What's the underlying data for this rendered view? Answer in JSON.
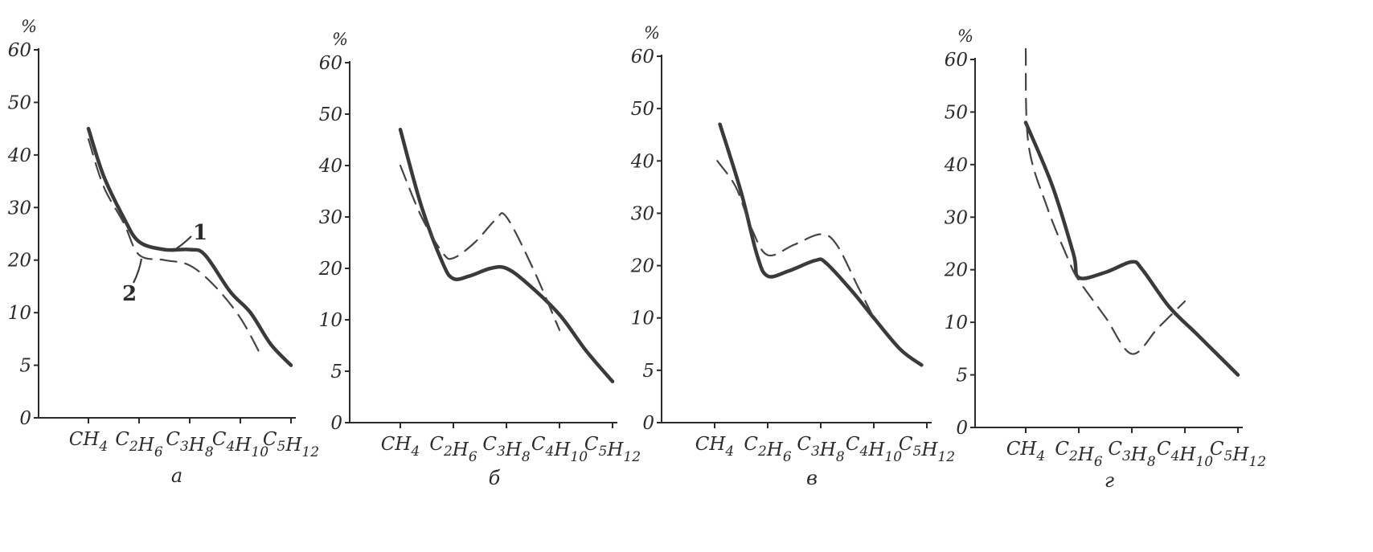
{
  "chart_data": [
    {
      "type": "line",
      "panel_label": "а",
      "unit": "%",
      "ylim": [
        0,
        60
      ],
      "yticks": [
        "0",
        "5",
        "10",
        "20",
        "30",
        "40",
        "50",
        "60"
      ],
      "categories": [
        "CH4",
        "C2H6",
        "C3H8",
        "C4H10",
        "C5H12"
      ],
      "categories_sub": [
        [
          [
            "C",
            "H",
            "4"
          ]
        ],
        [
          [
            "C",
            "2"
          ],
          [
            "H",
            "6"
          ]
        ],
        [
          [
            "C",
            "3"
          ],
          [
            "H",
            "8"
          ]
        ],
        [
          [
            "C",
            "4"
          ],
          [
            "H",
            "10"
          ]
        ],
        [
          [
            "C",
            "5"
          ],
          [
            "H",
            "12"
          ]
        ]
      ],
      "curve_labels": [
        "1",
        "2"
      ],
      "series": [
        {
          "style": "solid",
          "x": [
            0,
            0.3,
            0.7,
            1.0,
            1.5,
            2.0,
            2.3,
            2.8,
            3.2,
            3.6,
            4.0
          ],
          "y": [
            45,
            36,
            28,
            23.5,
            22,
            22,
            21,
            14,
            10,
            7,
            5
          ]
        },
        {
          "style": "dashed",
          "x": [
            0,
            0.3,
            0.7,
            1.0,
            1.5,
            2.0,
            2.5,
            3.0,
            3.4
          ],
          "y": [
            43,
            34,
            27,
            21,
            20,
            19,
            15,
            9.5,
            6
          ]
        }
      ]
    },
    {
      "type": "line",
      "panel_label": "б",
      "unit": "%",
      "ylim": [
        0,
        60
      ],
      "yticks": [
        "0",
        "5",
        "10",
        "20",
        "30",
        "40",
        "50",
        "60"
      ],
      "categories": [
        "CH4",
        "C2H6",
        "C3H8",
        "C4H10",
        "C5H12"
      ],
      "series": [
        {
          "style": "solid",
          "x": [
            0,
            0.4,
            0.8,
            1.0,
            1.3,
            1.7,
            2.0,
            2.4,
            3.0,
            3.5,
            4.0
          ],
          "y": [
            47,
            32,
            21,
            18,
            18.5,
            20,
            20,
            17,
            11,
            7,
            4
          ]
        },
        {
          "style": "dashed",
          "x": [
            0,
            0.4,
            0.8,
            1.0,
            1.4,
            1.8,
            2.0,
            2.5,
            3.0
          ],
          "y": [
            40,
            30,
            23,
            22,
            25,
            29.5,
            30,
            20,
            9
          ]
        }
      ]
    },
    {
      "type": "line",
      "panel_label": "в",
      "unit": "%",
      "ylim": [
        0,
        60
      ],
      "yticks": [
        "0",
        "5",
        "10",
        "20",
        "30",
        "40",
        "50",
        "60"
      ],
      "categories": [
        "CH4",
        "C2H6",
        "C3H8",
        "C4H10",
        "C5H12"
      ],
      "series": [
        {
          "style": "solid",
          "x": [
            0.1,
            0.5,
            0.8,
            1.0,
            1.4,
            1.9,
            2.1,
            2.6,
            3.0,
            3.5,
            3.9
          ],
          "y": [
            47,
            34,
            22,
            18,
            19,
            21,
            20.5,
            15,
            10,
            7,
            5.5
          ]
        },
        {
          "style": "dashed",
          "x": [
            0.05,
            0.4,
            0.7,
            1.0,
            1.5,
            2.0,
            2.3,
            2.7,
            3.0
          ],
          "y": [
            40,
            35,
            27,
            22,
            24,
            26,
            24,
            16,
            10
          ]
        }
      ]
    },
    {
      "type": "line",
      "panel_label": "г",
      "unit": "%",
      "ylim": [
        0,
        60
      ],
      "yticks": [
        "0",
        "5",
        "10",
        "20",
        "30",
        "40",
        "50",
        "60"
      ],
      "categories": [
        "CH4",
        "C2H6",
        "C3H8",
        "C4H10",
        "C5H12"
      ],
      "series": [
        {
          "style": "solid",
          "x": [
            0,
            0.5,
            0.9,
            1.0,
            1.5,
            2.0,
            2.2,
            2.7,
            3.2,
            3.6,
            4.0
          ],
          "y": [
            48,
            36,
            23,
            18.5,
            19.5,
            21.5,
            20,
            13,
            9,
            7,
            5
          ]
        },
        {
          "style": "dashed",
          "x": [
            0,
            0.05,
            0.4,
            0.8,
            1.0,
            1.5,
            2.0,
            2.5,
            3.0
          ],
          "y": [
            62,
            44,
            32,
            22,
            18,
            11,
            7,
            9.5,
            14
          ]
        }
      ]
    }
  ]
}
